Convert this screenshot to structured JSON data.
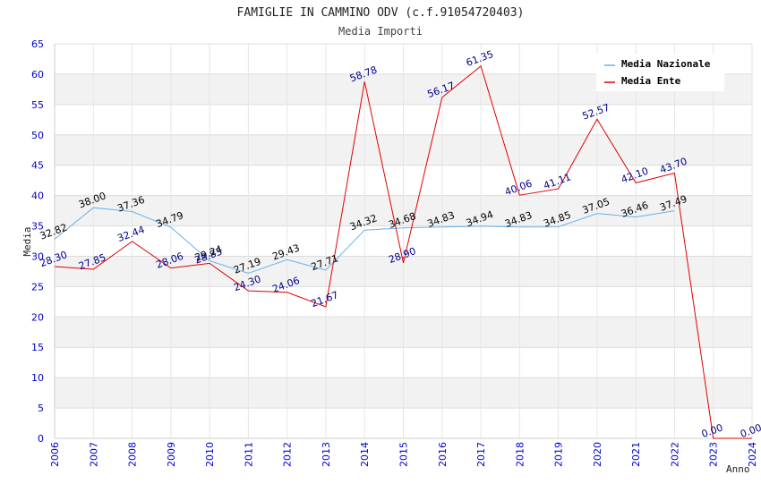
{
  "chart_data": {
    "type": "line",
    "title": "FAMIGLIE IN CAMMINO ODV (c.f.91054720403)",
    "subtitle": "Media Importi",
    "xlabel": "Anno",
    "ylabel": "Media",
    "x": [
      "2006",
      "2007",
      "2008",
      "2009",
      "2010",
      "2011",
      "2012",
      "2013",
      "2014",
      "2015",
      "2016",
      "2017",
      "2018",
      "2019",
      "2020",
      "2021",
      "2022",
      "2023",
      "2024"
    ],
    "ylim": [
      0,
      65
    ],
    "yticks": [
      0,
      5,
      10,
      15,
      20,
      25,
      30,
      35,
      40,
      45,
      50,
      55,
      60,
      65
    ],
    "grid": true,
    "legend_position": "top-right",
    "series": [
      {
        "name": "Media Nazionale",
        "color": "#6ab0e8",
        "label_color": "#000000",
        "values": [
          32.82,
          38.0,
          37.36,
          34.79,
          29.24,
          27.19,
          29.43,
          27.71,
          34.32,
          34.68,
          34.83,
          34.94,
          34.83,
          34.85,
          37.05,
          36.46,
          37.49,
          null,
          null
        ],
        "labels": [
          "32.82",
          "38.00",
          "37.36",
          "34.79",
          "29.24",
          "27.19",
          "29.43",
          "27.71",
          "34.32",
          "34.68",
          "34.83",
          "34.94",
          "34.83",
          "34.85",
          "37.05",
          "36.46",
          "37.49",
          null,
          null
        ]
      },
      {
        "name": "Media Ente",
        "color": "#e00000",
        "label_color": "#00008b",
        "values": [
          28.3,
          27.85,
          32.44,
          28.06,
          28.83,
          24.3,
          24.06,
          21.67,
          58.78,
          28.9,
          56.17,
          61.35,
          40.06,
          41.11,
          52.57,
          42.1,
          43.7,
          0.0,
          0.0
        ],
        "labels": [
          "28.30",
          "27.85",
          "32.44",
          "28.06",
          "28.83",
          "24.30",
          "24.06",
          "21.67",
          "58.78",
          "28.90",
          "56.17",
          "61.35",
          "40.06",
          "41.11",
          "52.57",
          "42.10",
          "43.70",
          "0.00",
          "0.00"
        ]
      }
    ]
  }
}
